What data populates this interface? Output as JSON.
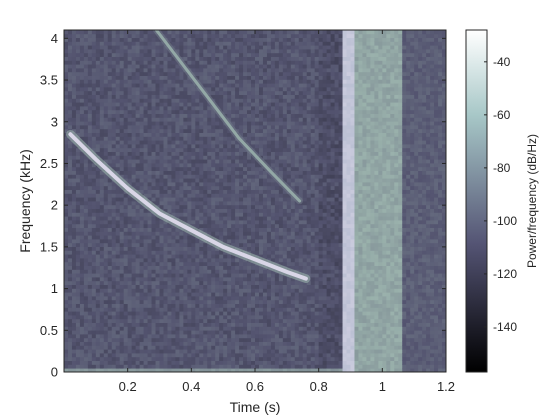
{
  "chart_data": {
    "type": "heatmap",
    "title": "",
    "xlabel": "Time (s)",
    "ylabel": "Frequency (kHz)",
    "xlim": [
      0,
      1.2
    ],
    "ylim": [
      0,
      4.1
    ],
    "x_ticks": [
      0.2,
      0.4,
      0.6,
      0.8,
      1,
      1.2
    ],
    "x_tick_labels": [
      "0.2",
      "0.4",
      "0.6",
      "0.8",
      "1",
      "1.2"
    ],
    "y_ticks": [
      0,
      0.5,
      1,
      1.5,
      2,
      2.5,
      3,
      3.5,
      4
    ],
    "y_tick_labels": [
      "0",
      "0.5",
      "1",
      "1.5",
      "2",
      "2.5",
      "3",
      "3.5",
      "4"
    ],
    "colorbar": {
      "label": "Power/frequency (dB/Hz)",
      "range": [
        -157,
        -28
      ],
      "ticks": [
        -40,
        -60,
        -80,
        -100,
        -120,
        -140
      ],
      "tick_labels": [
        "-40",
        "-60",
        "-80",
        "-100",
        "-120",
        "-140"
      ],
      "colormap": "bone"
    },
    "features": {
      "primary_chirp": {
        "points_time_s": [
          0.02,
          0.1,
          0.2,
          0.3,
          0.4,
          0.5,
          0.6,
          0.7,
          0.76
        ],
        "points_freq_khz": [
          2.85,
          2.55,
          2.2,
          1.9,
          1.7,
          1.5,
          1.35,
          1.2,
          1.12
        ],
        "level_db": -42
      },
      "harmonic_chirp": {
        "points_time_s": [
          0.29,
          0.35,
          0.45,
          0.55,
          0.65,
          0.74
        ],
        "points_freq_khz": [
          4.1,
          3.8,
          3.3,
          2.8,
          2.4,
          2.05
        ],
        "level_db": -72
      },
      "broadband_burst": {
        "time_range_s": [
          0.87,
          1.06
        ],
        "peak_time_range_s": [
          0.88,
          0.91
        ],
        "level_db": -55
      },
      "background_level_db": -108,
      "low_freq_band": {
        "freq_khz_max": 0.06,
        "level_db": -80
      }
    }
  }
}
